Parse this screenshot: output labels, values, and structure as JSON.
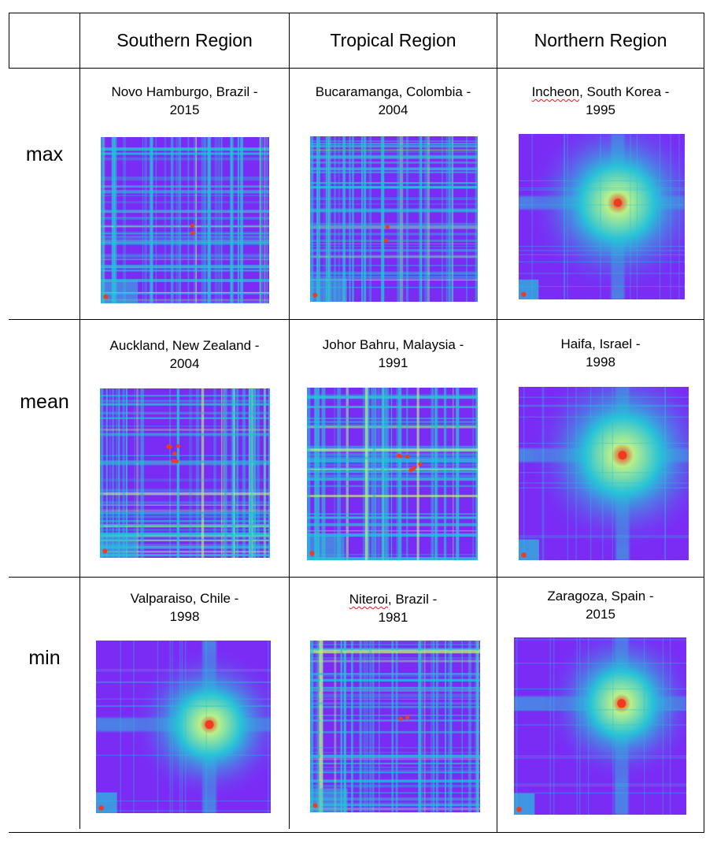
{
  "table": {
    "columns": [
      {
        "label": ""
      },
      {
        "label": "Southern Region"
      },
      {
        "label": "Tropical Region"
      },
      {
        "label": "Northern Region"
      }
    ],
    "rows": [
      {
        "label": "max",
        "cells": [
          {
            "line1": "Novo Hamburgo, Brazil -",
            "line2": "2015",
            "pattern": "grid-dense"
          },
          {
            "line1": "Bucaramanga, Colombia -",
            "line2": "2004",
            "pattern": "grid-dense"
          },
          {
            "line1_pre": "",
            "line1_marked": "Incheon",
            "line1_post": ", South Korea -",
            "line2": "1995",
            "pattern": "central-peak"
          }
        ]
      },
      {
        "label": "mean",
        "cells": [
          {
            "line1": "Auckland, New Zealand -",
            "line2": "2004",
            "pattern": "grid-hot"
          },
          {
            "line1": "Johor Bahru, Malaysia -",
            "line2": "1991",
            "pattern": "grid-hot"
          },
          {
            "line1": "Haifa, Israel -",
            "line2": "1998",
            "pattern": "central-peak"
          }
        ]
      },
      {
        "label": "min",
        "cells": [
          {
            "line1": "Valparaiso, Chile -",
            "line2": "1998",
            "pattern": "central-soft"
          },
          {
            "line1_pre": "",
            "line1_marked": "Niteroi",
            "line1_post": ", Brazil -",
            "line2": "1981",
            "pattern": "grid-dense"
          },
          {
            "line1": "Zaragoza, Spain -",
            "line2": "2015",
            "pattern": "central-soft"
          }
        ]
      }
    ]
  },
  "colors": {
    "cold": "#7a2cf5",
    "mid": "#27c2d8",
    "warm": "#b8f08a",
    "hot": "#f23a1f",
    "grid_line": "#000000"
  }
}
